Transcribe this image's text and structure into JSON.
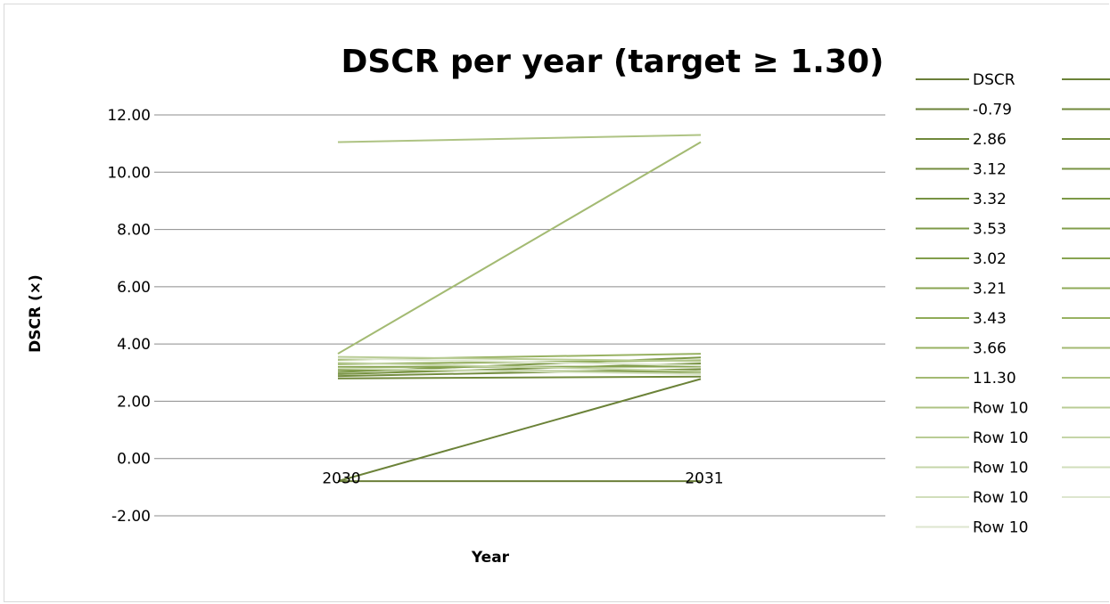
{
  "chart_data": {
    "type": "line",
    "title": "DSCR per year (target ≥ 1.30)",
    "xlabel": "Year",
    "ylabel": "DSCR (×)",
    "categories": [
      "2030",
      "2031"
    ],
    "ylim": [
      -2,
      12
    ],
    "yticks": [
      "-2.00",
      "0.00",
      "2.00",
      "4.00",
      "6.00",
      "8.00",
      "10.00",
      "12.00"
    ],
    "grid": true,
    "legend_position": "right",
    "series": [
      {
        "name": "DSCR",
        "values": [
          -0.79,
          -0.79
        ],
        "color": "#6b7f3a"
      },
      {
        "name": "-0.79",
        "values": [
          -0.79,
          2.78
        ],
        "color": "#6b8238"
      },
      {
        "name": "2.86",
        "values": [
          2.8,
          2.86
        ],
        "color": "#70883b"
      },
      {
        "name": "3.12",
        "values": [
          2.88,
          3.12
        ],
        "color": "#748d3f"
      },
      {
        "name": "3.32",
        "values": [
          2.95,
          3.32
        ],
        "color": "#789343"
      },
      {
        "name": "3.53",
        "values": [
          3.02,
          3.53
        ],
        "color": "#7d9947"
      },
      {
        "name": "3.02",
        "values": [
          3.1,
          3.02
        ],
        "color": "#829e4b"
      },
      {
        "name": "3.21",
        "values": [
          3.2,
          3.21
        ],
        "color": "#88a451"
      },
      {
        "name": "3.43",
        "values": [
          3.3,
          3.43
        ],
        "color": "#8fab58"
      },
      {
        "name": "3.66",
        "values": [
          3.45,
          3.66
        ],
        "color": "#98b262"
      },
      {
        "name": "11.30",
        "values": [
          3.66,
          11.05
        ],
        "color": "#a3ba72"
      },
      {
        "name": "Row 10",
        "values": [
          11.05,
          11.3
        ],
        "color": "#aec383"
      },
      {
        "name": "Row 10",
        "values": [
          3.55,
          3.4
        ],
        "color": "#b9cc95"
      },
      {
        "name": "Row 10",
        "values": [
          3.35,
          3.05
        ],
        "color": "#c5d5a8"
      },
      {
        "name": "Row 10",
        "values": [
          3.15,
          2.95
        ],
        "color": "#d1debb"
      },
      {
        "name": "Row 10",
        "values": [
          3.5,
          3.25
        ],
        "color": "#dde6cf"
      }
    ]
  }
}
